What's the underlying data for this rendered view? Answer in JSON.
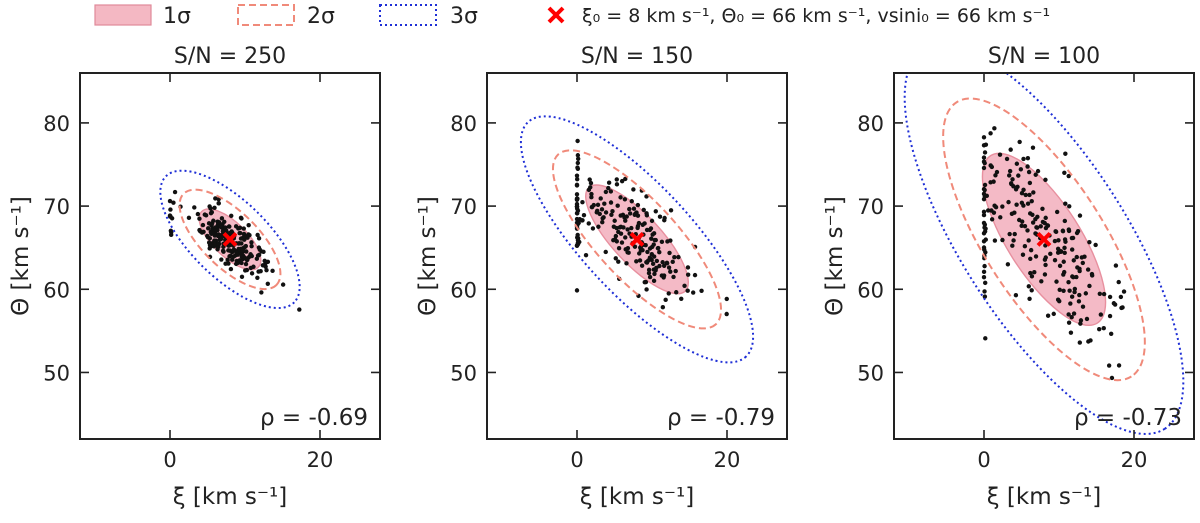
{
  "legend": {
    "items": [
      {
        "label": "1σ",
        "style": "filled",
        "color": "#f4b8c3",
        "edge": "#e08a9a"
      },
      {
        "label": "2σ",
        "style": "dashed",
        "color": "#f08a7a"
      },
      {
        "label": "3σ",
        "style": "dotted",
        "color": "#1f2fd6"
      }
    ],
    "marker_label": "ξ₀ = 8 km s⁻¹, Θ₀ = 66 km s⁻¹, vsini₀ = 66 km s⁻¹",
    "marker_color": "#ff0000"
  },
  "chart_data": [
    {
      "type": "scatter",
      "title": "S/N = 250",
      "xlabel": "ξ [km s⁻¹]",
      "ylabel": "Θ [km s⁻¹]",
      "xlim": [
        -12,
        28
      ],
      "ylim": [
        42,
        86
      ],
      "xticks": [
        0,
        20
      ],
      "yticks": [
        50,
        60,
        70,
        80
      ],
      "rho_label": "ρ = -0.69",
      "truth": [
        8,
        66
      ],
      "ellipses": {
        "center": [
          8,
          66
        ],
        "sigma_x": 2.7,
        "sigma_y": 2.4,
        "rho": -0.69
      },
      "cloud": {
        "n": 230,
        "sx": 2.6,
        "sy": 2.2,
        "rho": -0.69,
        "stack_fraction": 0.06,
        "seed": 11
      }
    },
    {
      "type": "scatter",
      "title": "S/N = 150",
      "xlabel": "ξ [km s⁻¹]",
      "ylabel": "Θ [km s⁻¹]",
      "xlim": [
        -12,
        28
      ],
      "ylim": [
        42,
        86
      ],
      "xticks": [
        0,
        20
      ],
      "yticks": [
        50,
        60,
        70,
        80
      ],
      "rho_label": "ρ = -0.79",
      "truth": [
        8,
        66
      ],
      "ellipses": {
        "center": [
          8,
          66
        ],
        "sigma_x": 4.5,
        "sigma_y": 4.3,
        "rho": -0.79
      },
      "cloud": {
        "n": 230,
        "sx": 4.1,
        "sy": 4.0,
        "rho": -0.79,
        "stack_fraction": 0.12,
        "seed": 23
      }
    },
    {
      "type": "scatter",
      "title": "S/N = 100",
      "xlabel": "ξ [km s⁻¹]",
      "ylabel": "Θ [km s⁻¹]",
      "xlim": [
        -12,
        28
      ],
      "ylim": [
        42,
        86
      ],
      "xticks": [
        0,
        20
      ],
      "yticks": [
        50,
        60,
        70,
        80
      ],
      "rho_label": "ρ = -0.73",
      "truth": [
        8,
        66
      ],
      "ellipses": {
        "center": [
          8,
          66
        ],
        "sigma_x": 5.4,
        "sigma_y": 6.8,
        "rho": -0.73
      },
      "cloud": {
        "n": 240,
        "sx": 5.0,
        "sy": 6.2,
        "rho": -0.73,
        "stack_fraction": 0.18,
        "seed": 37
      }
    }
  ]
}
